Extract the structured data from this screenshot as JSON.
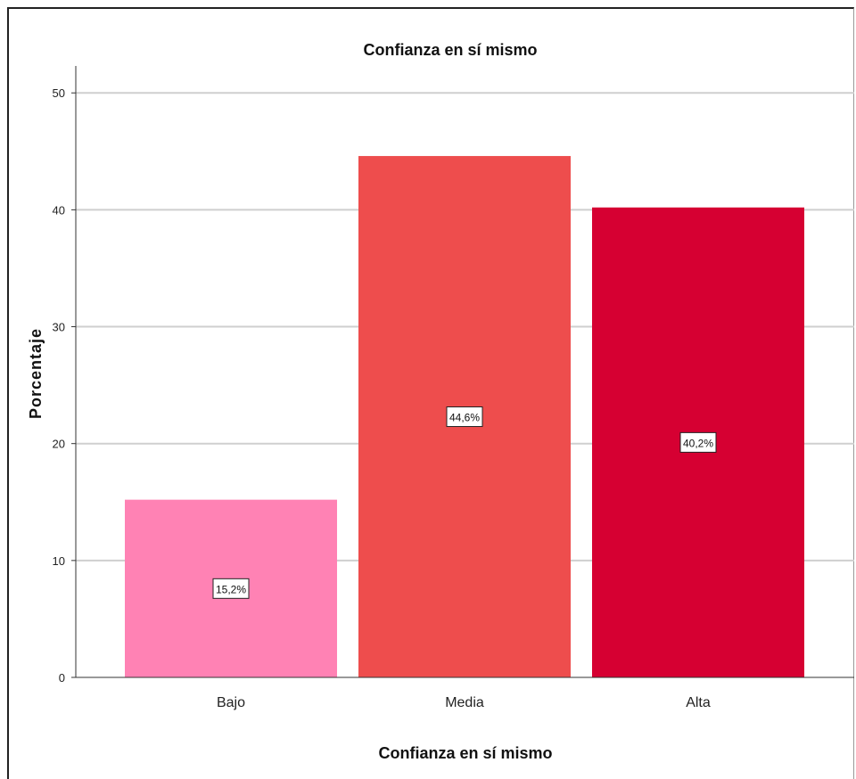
{
  "chart_data": {
    "type": "bar",
    "title": "Confianza en sí mismo",
    "xlabel": "Confianza en sí mismo",
    "ylabel": "Porcentaje",
    "categories": [
      "Bajo",
      "Media",
      "Alta"
    ],
    "values": [
      15.2,
      44.6,
      40.2
    ],
    "data_labels": [
      "15,2%",
      "44,6%",
      "40,2%"
    ],
    "colors": [
      "#ff82b4",
      "#ee4d4d",
      "#d60032"
    ],
    "ylim": [
      0,
      52
    ],
    "yticks": [
      0,
      10,
      20,
      30,
      40,
      50
    ],
    "grid": true,
    "legend": "none"
  }
}
